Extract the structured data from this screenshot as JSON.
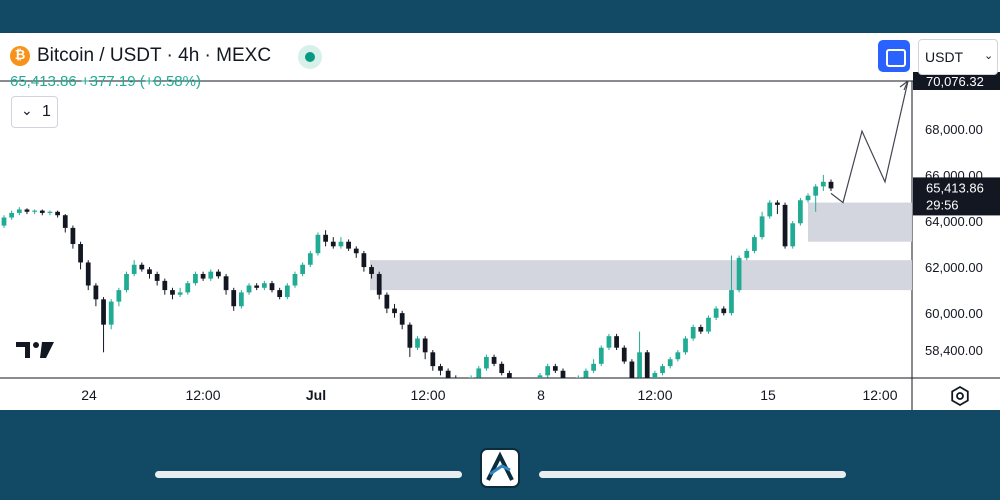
{
  "header": {
    "symbol_title": "Bitcoin / USDT · 4h · MEXC",
    "price_line": "65,413.86  +377.19 (+0.58%)",
    "interval_value": "1",
    "currency": "USDT"
  },
  "chart_data": {
    "type": "candlestick",
    "y_ticks": [
      {
        "value": 68000,
        "label": "68,000.00"
      },
      {
        "value": 66000,
        "label": "66,000.00"
      },
      {
        "value": 64000,
        "label": "64,000.00"
      },
      {
        "value": 62000,
        "label": "62,000.00"
      },
      {
        "value": 60000,
        "label": "60,000.00"
      },
      {
        "value": 58400,
        "label": "58,400.00"
      }
    ],
    "y_range": [
      57000,
      70500
    ],
    "x_ticks": [
      "24",
      "12:00",
      "Jul",
      "12:00",
      "8",
      "12:00",
      "15",
      "12:00"
    ],
    "current_price_label": "65,413.86",
    "countdown_label": "29:56",
    "target_price": 70076.32,
    "target_price_label": "70,076.32",
    "zones": [
      {
        "low": 63100,
        "high": 64800
      },
      {
        "low": 61000,
        "high": 62300
      }
    ],
    "projection_path": [
      65200,
      64800,
      67900,
      65700,
      70076.32
    ],
    "candles": [
      [
        63800,
        64150,
        63700,
        64250
      ],
      [
        64150,
        64350,
        64050,
        64450
      ],
      [
        64350,
        64500,
        64250,
        64600
      ],
      [
        64500,
        64400,
        64300,
        64550
      ],
      [
        64400,
        64450,
        64300,
        64500
      ],
      [
        64450,
        64350,
        64250,
        64500
      ],
      [
        64350,
        64400,
        64250,
        64450
      ],
      [
        64400,
        64250,
        64150,
        64450
      ],
      [
        64250,
        63700,
        63500,
        64300
      ],
      [
        63700,
        63000,
        62800,
        63800
      ],
      [
        63000,
        62200,
        61900,
        63100
      ],
      [
        62200,
        61200,
        61000,
        62300
      ],
      [
        61200,
        60600,
        60300,
        61300
      ],
      [
        60600,
        59500,
        58300,
        60700
      ],
      [
        59500,
        60500,
        59300,
        60600
      ],
      [
        60500,
        61000,
        60300,
        61100
      ],
      [
        61000,
        61700,
        60900,
        61800
      ],
      [
        61700,
        62100,
        61600,
        62300
      ],
      [
        62100,
        61900,
        61800,
        62200
      ],
      [
        61900,
        61700,
        61500,
        62000
      ],
      [
        61700,
        61400,
        61200,
        61800
      ],
      [
        61400,
        61000,
        60800,
        61500
      ],
      [
        61000,
        60800,
        60600,
        61100
      ],
      [
        60800,
        60900,
        60700,
        61100
      ],
      [
        60900,
        61300,
        60800,
        61400
      ],
      [
        61300,
        61700,
        61200,
        61800
      ],
      [
        61700,
        61500,
        61400,
        61800
      ],
      [
        61500,
        61800,
        61400,
        61900
      ],
      [
        61800,
        61600,
        61500,
        61900
      ],
      [
        61600,
        61000,
        60800,
        61700
      ],
      [
        61000,
        60300,
        60100,
        61100
      ],
      [
        60300,
        60900,
        60200,
        61000
      ],
      [
        60900,
        61200,
        60800,
        61300
      ],
      [
        61200,
        61100,
        61000,
        61300
      ],
      [
        61100,
        61300,
        61000,
        61400
      ],
      [
        61300,
        61000,
        60900,
        61400
      ],
      [
        61000,
        60700,
        60600,
        61100
      ],
      [
        60700,
        61200,
        60600,
        61300
      ],
      [
        61200,
        61700,
        61100,
        61800
      ],
      [
        61700,
        62100,
        61600,
        62200
      ],
      [
        62100,
        62600,
        62000,
        62700
      ],
      [
        62600,
        63400,
        62500,
        63500
      ],
      [
        63400,
        63100,
        62900,
        63600
      ],
      [
        63100,
        62900,
        62800,
        63300
      ],
      [
        62900,
        63100,
        62800,
        63300
      ],
      [
        63100,
        62800,
        62700,
        63200
      ],
      [
        62800,
        62600,
        62400,
        62900
      ],
      [
        62600,
        62000,
        61800,
        62700
      ],
      [
        62000,
        61700,
        61500,
        62100
      ],
      [
        61700,
        60800,
        60600,
        61800
      ],
      [
        60800,
        60200,
        60000,
        60900
      ],
      [
        60200,
        60000,
        59800,
        60400
      ],
      [
        60000,
        59500,
        59300,
        60100
      ],
      [
        59500,
        58500,
        58100,
        59600
      ],
      [
        58500,
        58900,
        58400,
        59000
      ],
      [
        58900,
        58300,
        58000,
        59000
      ],
      [
        58300,
        57700,
        57500,
        58400
      ],
      [
        57700,
        57500,
        57300,
        57800
      ],
      [
        57500,
        57200,
        57000,
        57600
      ],
      [
        57200,
        57000,
        56800,
        57300
      ],
      [
        57000,
        56800,
        56500,
        57100
      ],
      [
        56800,
        57200,
        56700,
        57300
      ],
      [
        57200,
        57600,
        57100,
        57700
      ],
      [
        57600,
        58100,
        57500,
        58200
      ],
      [
        58100,
        57800,
        57700,
        58200
      ],
      [
        57800,
        57400,
        57300,
        57900
      ],
      [
        57400,
        57000,
        56900,
        57500
      ],
      [
        57000,
        56800,
        56600,
        57100
      ],
      [
        56800,
        56600,
        56400,
        56900
      ],
      [
        56600,
        56900,
        56500,
        57000
      ],
      [
        56900,
        57300,
        56800,
        57400
      ],
      [
        57300,
        57700,
        57200,
        57800
      ],
      [
        57700,
        57500,
        57400,
        57800
      ],
      [
        57500,
        57000,
        56900,
        57600
      ],
      [
        57000,
        56800,
        56700,
        57100
      ],
      [
        56800,
        57200,
        56700,
        57300
      ],
      [
        57200,
        57500,
        57100,
        57600
      ],
      [
        57500,
        57800,
        57400,
        58000
      ],
      [
        57800,
        58500,
        57700,
        58600
      ],
      [
        58500,
        59000,
        58400,
        59100
      ],
      [
        59000,
        58500,
        58400,
        59100
      ],
      [
        58500,
        57900,
        57800,
        58600
      ],
      [
        57900,
        57200,
        57100,
        58000
      ],
      [
        57200,
        58300,
        57100,
        59200
      ],
      [
        58300,
        57000,
        56900,
        58400
      ],
      [
        57000,
        57400,
        56900,
        57500
      ],
      [
        57400,
        57700,
        57300,
        57800
      ],
      [
        57700,
        58000,
        57600,
        58100
      ],
      [
        58000,
        58300,
        57900,
        58400
      ],
      [
        58300,
        58900,
        58200,
        59000
      ],
      [
        58900,
        59400,
        58800,
        59500
      ],
      [
        59400,
        59200,
        59100,
        59500
      ],
      [
        59200,
        59800,
        59100,
        59900
      ],
      [
        59800,
        60200,
        59700,
        60300
      ],
      [
        60200,
        60000,
        59900,
        60300
      ],
      [
        60000,
        61000,
        59900,
        62500
      ],
      [
        61000,
        62400,
        60900,
        62500
      ],
      [
        62400,
        62700,
        62300,
        62800
      ],
      [
        62700,
        63300,
        62600,
        63400
      ],
      [
        63300,
        64200,
        63200,
        64400
      ],
      [
        64200,
        64800,
        64100,
        64900
      ],
      [
        64800,
        64700,
        64300,
        64900
      ],
      [
        64700,
        62900,
        62800,
        64800
      ],
      [
        62900,
        63900,
        62800,
        64000
      ],
      [
        63900,
        64900,
        63800,
        65000
      ],
      [
        64900,
        65100,
        64800,
        65200
      ],
      [
        65100,
        65500,
        64400,
        65600
      ],
      [
        65500,
        65700,
        65300,
        66000
      ],
      [
        65700,
        65414,
        65300,
        65800
      ]
    ]
  },
  "colors": {
    "up": "#22ab94",
    "down": "#131722",
    "zone": "#d1d4dc",
    "background": "#124a66"
  }
}
